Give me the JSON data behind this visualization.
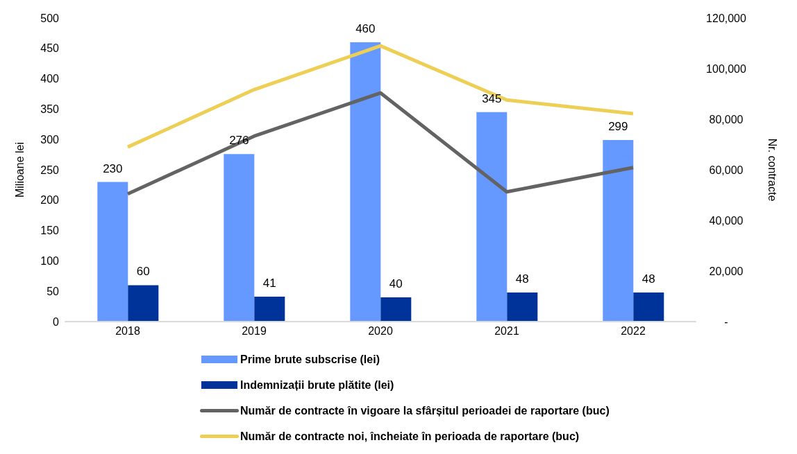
{
  "chart_data": {
    "type": "bar",
    "categories": [
      "2018",
      "2019",
      "2020",
      "2021",
      "2022"
    ],
    "series": [
      {
        "name": "Prime brute subscrise (lei)",
        "color": "#6699ff",
        "values": [
          230,
          276,
          460,
          345,
          299
        ],
        "value_labels": [
          "230",
          "276",
          "460",
          "345",
          "299"
        ]
      },
      {
        "name": "Indemnizații brute plătite (lei)",
        "color": "#003399",
        "values": [
          60,
          41,
          40,
          48,
          48
        ],
        "value_labels": [
          "60",
          "41",
          "40",
          "48",
          "48"
        ]
      },
      {
        "name": "Număr de contracte în vigoare la sfârșitul perioadei de raportare (buc)",
        "type": "line",
        "axis": "y2",
        "color": "#636363",
        "values": [
          50500,
          73300,
          90400,
          51300,
          60900
        ]
      },
      {
        "name": "Număr de contracte noi, încheiate în perioada de raportare (buc)",
        "type": "line",
        "axis": "y2",
        "color": "#edcf55",
        "values": [
          69000,
          91700,
          109000,
          87600,
          82200
        ]
      }
    ],
    "ylabel": "Milioane lei",
    "y2label": "Nr. contracte",
    "ylim": [
      0,
      500
    ],
    "yticks": [
      0,
      50,
      100,
      150,
      200,
      250,
      300,
      350,
      400,
      450,
      500
    ],
    "y2lim": [
      0,
      120000
    ],
    "y2ticks": [
      {
        "value": 0,
        "label": "-"
      },
      {
        "value": 20000,
        "label": "20,000"
      },
      {
        "value": 40000,
        "label": "40,000"
      },
      {
        "value": 60000,
        "label": "60,000"
      },
      {
        "value": 80000,
        "label": "80,000"
      },
      {
        "value": 100000,
        "label": "100,000"
      },
      {
        "value": 120000,
        "label": "120,000"
      }
    ],
    "grid": false,
    "legend": "bottom",
    "marker": "none",
    "line_style": "solid"
  }
}
